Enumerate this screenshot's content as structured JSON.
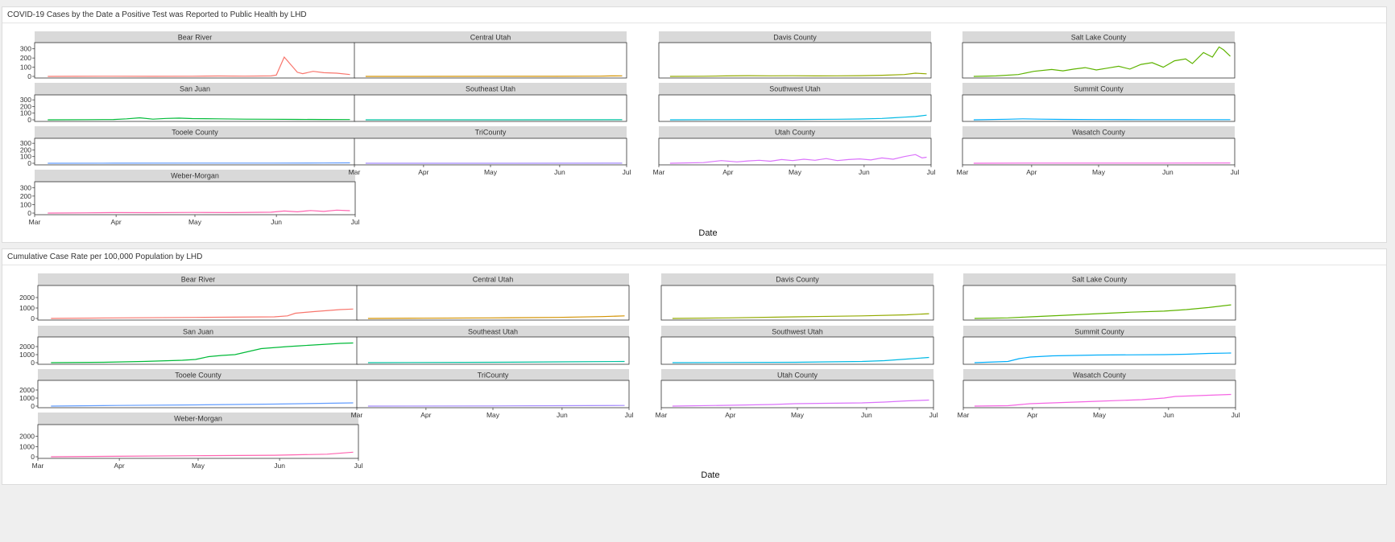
{
  "dashboard": {
    "panels": [
      {
        "id": "daily",
        "title": "COVID-19 Cases by the Date a Positive Test was Reported to Public Health by LHD"
      },
      {
        "id": "cumulative",
        "title": "Cumulative Case Rate per 100,000 Population by LHD"
      }
    ]
  },
  "chart_data": [
    {
      "type": "line",
      "facet": "small-multiples",
      "title": "COVID-19 Cases by the Date a Positive Test was Reported to Public Health by LHD",
      "xlabel": "Date",
      "ylabel": "",
      "x_ticks": [
        "Mar",
        "Apr",
        "May",
        "Jun",
        "Jul"
      ],
      "xlim": [
        "Mar 1",
        "Jul 1"
      ],
      "ylim": [
        0,
        350
      ],
      "y_ticks": [
        0,
        100,
        200,
        300
      ],
      "grid": false,
      "series": [
        {
          "name": "Bear River",
          "color": "#f8766d",
          "x_day": [
            5,
            15,
            30,
            45,
            60,
            70,
            80,
            90,
            92,
            95,
            100,
            102,
            106,
            110,
            115,
            120
          ],
          "values": [
            0,
            1,
            2,
            1,
            2,
            4,
            3,
            5,
            15,
            210,
            45,
            30,
            55,
            40,
            35,
            20
          ]
        },
        {
          "name": "Central Utah",
          "color": "#d39200",
          "x_day": [
            5,
            30,
            60,
            90,
            110,
            115,
            120
          ],
          "values": [
            0,
            0,
            1,
            1,
            3,
            5,
            6
          ]
        },
        {
          "name": "Davis County",
          "color": "#93aa00",
          "x_day": [
            5,
            20,
            30,
            40,
            50,
            60,
            70,
            80,
            90,
            100,
            110,
            115,
            120
          ],
          "values": [
            0,
            2,
            5,
            8,
            6,
            7,
            5,
            6,
            8,
            12,
            20,
            35,
            28
          ]
        },
        {
          "name": "Salt Lake County",
          "color": "#5eb300",
          "x_day": [
            5,
            15,
            25,
            32,
            40,
            45,
            50,
            55,
            60,
            65,
            70,
            75,
            80,
            85,
            90,
            95,
            100,
            103,
            108,
            112,
            115,
            117,
            120
          ],
          "values": [
            0,
            5,
            20,
            55,
            75,
            60,
            80,
            95,
            70,
            90,
            110,
            80,
            130,
            150,
            100,
            170,
            190,
            140,
            260,
            210,
            320,
            290,
            220
          ]
        },
        {
          "name": "San Juan",
          "color": "#00ba38",
          "x_day": [
            5,
            20,
            30,
            35,
            40,
            45,
            50,
            55,
            60,
            70,
            80,
            90,
            100,
            110,
            120
          ],
          "values": [
            0,
            2,
            5,
            15,
            30,
            10,
            20,
            25,
            18,
            15,
            10,
            8,
            6,
            5,
            4
          ]
        },
        {
          "name": "Southeast Utah",
          "color": "#00c19f",
          "x_day": [
            5,
            60,
            120
          ],
          "values": [
            0,
            0,
            1
          ]
        },
        {
          "name": "Southwest Utah",
          "color": "#00b9e3",
          "x_day": [
            5,
            30,
            60,
            80,
            90,
            100,
            105,
            110,
            115,
            120
          ],
          "values": [
            0,
            2,
            5,
            8,
            12,
            20,
            30,
            40,
            50,
            70
          ]
        },
        {
          "name": "Summit County",
          "color": "#00adfa",
          "x_day": [
            5,
            20,
            27,
            35,
            45,
            60,
            80,
            100,
            120
          ],
          "values": [
            0,
            8,
            15,
            10,
            6,
            4,
            3,
            2,
            2
          ]
        },
        {
          "name": "Tooele County",
          "color": "#619cff",
          "x_day": [
            5,
            30,
            60,
            90,
            110,
            120
          ],
          "values": [
            0,
            1,
            2,
            3,
            4,
            6
          ]
        },
        {
          "name": "TriCounty",
          "color": "#a58aff",
          "x_day": [
            5,
            60,
            120
          ],
          "values": [
            0,
            0,
            1
          ]
        },
        {
          "name": "Utah County",
          "color": "#db72fb",
          "x_day": [
            5,
            20,
            28,
            35,
            40,
            45,
            50,
            55,
            60,
            65,
            70,
            75,
            80,
            85,
            90,
            95,
            100,
            105,
            110,
            115,
            118,
            120
          ],
          "values": [
            0,
            10,
            40,
            20,
            35,
            45,
            30,
            55,
            40,
            60,
            45,
            70,
            40,
            55,
            65,
            50,
            80,
            60,
            100,
            130,
            80,
            90
          ]
        },
        {
          "name": "Wasatch County",
          "color": "#f564e3",
          "x_day": [
            5,
            30,
            60,
            90,
            120
          ],
          "values": [
            0,
            2,
            3,
            3,
            4
          ]
        },
        {
          "name": "Weber-Morgan",
          "color": "#ff64b0",
          "x_day": [
            5,
            20,
            30,
            45,
            60,
            75,
            90,
            95,
            100,
            105,
            110,
            115,
            120
          ],
          "values": [
            0,
            3,
            6,
            5,
            8,
            6,
            10,
            25,
            15,
            30,
            20,
            35,
            28
          ]
        }
      ]
    },
    {
      "type": "line",
      "facet": "small-multiples",
      "title": "Cumulative Case Rate per 100,000 Population by LHD",
      "xlabel": "Date",
      "ylabel": "",
      "x_ticks": [
        "Mar",
        "Apr",
        "May",
        "Jun",
        "Jul"
      ],
      "xlim": [
        "Mar 1",
        "Jul 1"
      ],
      "ylim": [
        0,
        3000
      ],
      "y_ticks": [
        0,
        1000,
        2000
      ],
      "grid": false,
      "series": [
        {
          "name": "Bear River",
          "color": "#f8766d",
          "x_day": [
            5,
            30,
            60,
            90,
            95,
            98,
            105,
            115,
            120
          ],
          "values": [
            0,
            50,
            100,
            150,
            250,
            500,
            650,
            850,
            900
          ]
        },
        {
          "name": "Central Utah",
          "color": "#d39200",
          "x_day": [
            5,
            30,
            60,
            90,
            110,
            120
          ],
          "values": [
            0,
            20,
            50,
            100,
            180,
            250
          ]
        },
        {
          "name": "Davis County",
          "color": "#93aa00",
          "x_day": [
            5,
            30,
            60,
            90,
            110,
            120
          ],
          "values": [
            0,
            50,
            150,
            250,
            350,
            450
          ]
        },
        {
          "name": "Salt Lake County",
          "color": "#5eb300",
          "x_day": [
            5,
            20,
            30,
            45,
            60,
            75,
            90,
            100,
            110,
            120
          ],
          "values": [
            0,
            50,
            150,
            300,
            450,
            600,
            700,
            850,
            1050,
            1300
          ]
        },
        {
          "name": "San Juan",
          "color": "#00ba38",
          "x_day": [
            5,
            25,
            40,
            55,
            60,
            65,
            70,
            75,
            85,
            95,
            100,
            105,
            110,
            115,
            120
          ],
          "values": [
            0,
            50,
            150,
            300,
            400,
            750,
            900,
            1000,
            1750,
            2000,
            2100,
            2200,
            2300,
            2400,
            2450
          ]
        },
        {
          "name": "Southeast Utah",
          "color": "#00c19f",
          "x_day": [
            5,
            60,
            90,
            120
          ],
          "values": [
            0,
            50,
            100,
            150
          ]
        },
        {
          "name": "Southwest Utah",
          "color": "#00b9e3",
          "x_day": [
            5,
            60,
            90,
            100,
            110,
            120
          ],
          "values": [
            0,
            50,
            150,
            250,
            450,
            650
          ]
        },
        {
          "name": "Summit County",
          "color": "#00adfa",
          "x_day": [
            5,
            15,
            20,
            25,
            30,
            40,
            60,
            90,
            100,
            110,
            120
          ],
          "values": [
            0,
            100,
            150,
            500,
            700,
            850,
            950,
            1000,
            1050,
            1150,
            1200
          ]
        },
        {
          "name": "Tooele County",
          "color": "#619cff",
          "x_day": [
            5,
            30,
            60,
            90,
            110,
            120
          ],
          "values": [
            0,
            80,
            150,
            250,
            350,
            400
          ]
        },
        {
          "name": "TriCounty",
          "color": "#a58aff",
          "x_day": [
            5,
            60,
            90,
            120
          ],
          "values": [
            0,
            20,
            50,
            80
          ]
        },
        {
          "name": "Utah County",
          "color": "#db72fb",
          "x_day": [
            5,
            30,
            50,
            60,
            90,
            100,
            110,
            120
          ],
          "values": [
            0,
            100,
            200,
            300,
            400,
            500,
            650,
            750
          ]
        },
        {
          "name": "Wasatch County",
          "color": "#f564e3",
          "x_day": [
            5,
            20,
            30,
            40,
            60,
            80,
            90,
            95,
            100,
            110,
            120
          ],
          "values": [
            0,
            50,
            300,
            400,
            600,
            800,
            1000,
            1200,
            1250,
            1350,
            1450
          ]
        },
        {
          "name": "Weber-Morgan",
          "color": "#ff64b0",
          "x_day": [
            5,
            30,
            60,
            90,
            110,
            120
          ],
          "values": [
            0,
            50,
            100,
            150,
            250,
            450
          ]
        }
      ]
    }
  ]
}
